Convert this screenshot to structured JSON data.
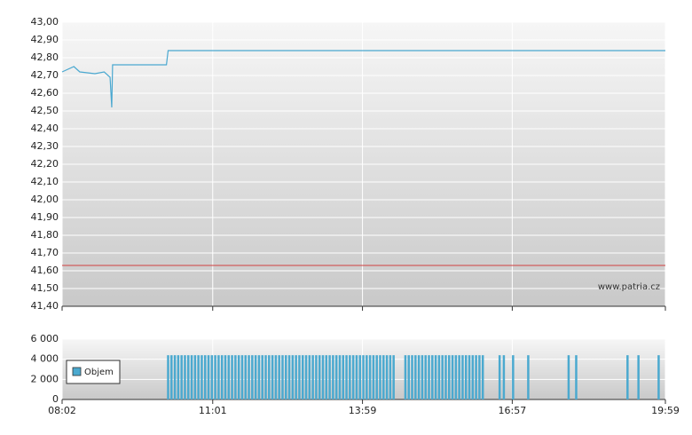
{
  "chart_data": [
    {
      "type": "line",
      "color": "#4aa8d0",
      "grid": true,
      "watermark": "www.patria.cz",
      "xlim": [
        482,
        1199
      ],
      "ylim": [
        41.4,
        43.0
      ],
      "yticks": [
        {
          "value": 41.4,
          "label": "41,40"
        },
        {
          "value": 41.5,
          "label": "41,50"
        },
        {
          "value": 41.6,
          "label": "41,60"
        },
        {
          "value": 41.7,
          "label": "41,70"
        },
        {
          "value": 41.8,
          "label": "41,80"
        },
        {
          "value": 41.9,
          "label": "41,90"
        },
        {
          "value": 42.0,
          "label": "42,00"
        },
        {
          "value": 42.1,
          "label": "42,10"
        },
        {
          "value": 42.2,
          "label": "42,20"
        },
        {
          "value": 42.3,
          "label": "42,30"
        },
        {
          "value": 42.4,
          "label": "42,40"
        },
        {
          "value": 42.5,
          "label": "42,50"
        },
        {
          "value": 42.6,
          "label": "42,60"
        },
        {
          "value": 42.7,
          "label": "42,70"
        },
        {
          "value": 42.8,
          "label": "42,80"
        },
        {
          "value": 42.9,
          "label": "42,90"
        },
        {
          "value": 43.0,
          "label": "43,00"
        }
      ],
      "x": [
        482,
        496,
        503,
        521,
        532,
        539,
        541,
        542,
        606,
        608,
        1199
      ],
      "values": [
        42.72,
        42.75,
        42.72,
        42.71,
        42.72,
        42.69,
        42.52,
        42.76,
        42.76,
        42.84,
        42.84
      ],
      "reference_line": {
        "value": 41.63,
        "color": "#d04040"
      }
    },
    {
      "type": "bar",
      "grid": true,
      "legend": "upper left",
      "xlim": [
        482,
        1199
      ],
      "xticks": [
        {
          "value": 482,
          "label": "08:02"
        },
        {
          "value": 661,
          "label": "11:01"
        },
        {
          "value": 839,
          "label": "13:59"
        },
        {
          "value": 1017,
          "label": "16:57"
        },
        {
          "value": 1199,
          "label": "19:59"
        }
      ],
      "ylim": [
        0,
        6000
      ],
      "yticks": [
        0,
        {
          "value": 2000,
          "label": "2 000"
        },
        {
          "value": 4000,
          "label": "4 000"
        },
        {
          "value": 6000,
          "label": "6 000"
        }
      ],
      "x": [
        608,
        612,
        616,
        620,
        624,
        628,
        632,
        636,
        640,
        644,
        648,
        652,
        656,
        660,
        664,
        668,
        672,
        676,
        680,
        684,
        688,
        692,
        696,
        700,
        704,
        708,
        712,
        716,
        720,
        724,
        728,
        732,
        736,
        740,
        744,
        748,
        752,
        756,
        760,
        764,
        768,
        772,
        776,
        780,
        784,
        788,
        792,
        796,
        800,
        804,
        808,
        812,
        816,
        820,
        824,
        828,
        832,
        836,
        840,
        844,
        848,
        852,
        856,
        860,
        864,
        868,
        872,
        876,
        890,
        894,
        898,
        902,
        906,
        910,
        914,
        918,
        922,
        926,
        930,
        934,
        938,
        942,
        946,
        950,
        954,
        958,
        962,
        966,
        970,
        974,
        978,
        982,
        1002,
        1007,
        1018,
        1036,
        1084,
        1093,
        1154,
        1167,
        1191
      ],
      "series": [
        {
          "name": "Objem",
          "color": "#4ba9cf",
          "values": [
            4400,
            4400,
            4400,
            4400,
            4400,
            4400,
            4400,
            4400,
            4400,
            4400,
            4400,
            4400,
            4400,
            4400,
            4400,
            4400,
            4400,
            4400,
            4400,
            4400,
            4400,
            4400,
            4400,
            4400,
            4400,
            4400,
            4400,
            4400,
            4400,
            4400,
            4400,
            4400,
            4400,
            4400,
            4400,
            4400,
            4400,
            4400,
            4400,
            4400,
            4400,
            4400,
            4400,
            4400,
            4400,
            4400,
            4400,
            4400,
            4400,
            4400,
            4400,
            4400,
            4400,
            4400,
            4400,
            4400,
            4400,
            4400,
            4400,
            4400,
            4400,
            4400,
            4400,
            4400,
            4400,
            4400,
            4400,
            4400,
            4400,
            4400,
            4400,
            4400,
            4400,
            4400,
            4400,
            4400,
            4400,
            4400,
            4400,
            4400,
            4400,
            4400,
            4400,
            4400,
            4400,
            4400,
            4400,
            4400,
            4400,
            4400,
            4400,
            4400,
            4400,
            4400,
            4400,
            4400,
            4400,
            4400,
            4400,
            4400,
            4400
          ]
        }
      ]
    }
  ]
}
